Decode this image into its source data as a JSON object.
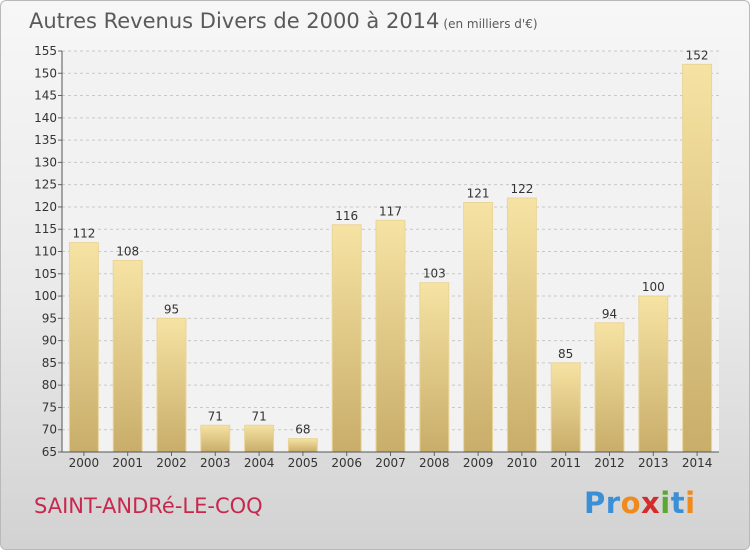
{
  "title": "Autres Revenus Divers de 2000 à 2014",
  "unit_note": "(en milliers d'€)",
  "commune": "SAINT-ANDRé-LE-COQ",
  "logo": {
    "letters": [
      "P",
      "r",
      "o",
      "x",
      "i",
      "t",
      "i"
    ],
    "colors": [
      "#3b8fd6",
      "#3b8fd6",
      "#f08a1c",
      "#d42b2b",
      "#5aa832",
      "#3b8fd6",
      "#f08a1c"
    ]
  },
  "colors": {
    "bar_light": "#f6e3a3",
    "bar_dark": "#c9ad6a",
    "grid": "#c8c8c8",
    "text": "#333333",
    "commune": "#c8284e"
  },
  "chart_data": {
    "type": "bar",
    "categories": [
      "2000",
      "2001",
      "2002",
      "2003",
      "2004",
      "2005",
      "2006",
      "2007",
      "2008",
      "2009",
      "2010",
      "2011",
      "2012",
      "2013",
      "2014"
    ],
    "values": [
      112,
      108,
      95,
      71,
      71,
      68,
      116,
      117,
      103,
      121,
      122,
      85,
      94,
      100,
      152
    ],
    "value_labels": [
      "112",
      "108",
      "95",
      "71",
      "71",
      "68",
      "116",
      "117",
      "103",
      "121",
      "122",
      "85",
      "94",
      "100",
      "152"
    ],
    "yticks": [
      "65",
      "70",
      "75",
      "80",
      "85",
      "90",
      "95",
      "100",
      "105",
      "110",
      "115",
      "120",
      "125",
      "130",
      "135",
      "140",
      "145",
      "150",
      "155"
    ],
    "ylim": [
      65,
      155
    ],
    "ytick_step": 5,
    "grid": true,
    "title": "Autres Revenus Divers de 2000 à 2014",
    "xlabel": "",
    "ylabel": ""
  }
}
